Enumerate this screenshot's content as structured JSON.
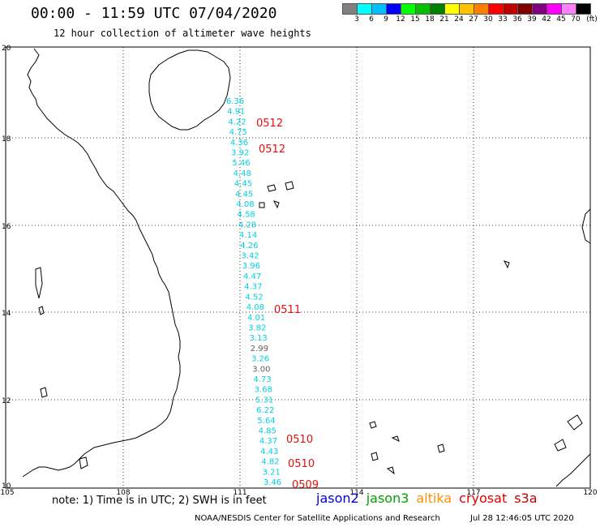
{
  "title": "00:00 - 11:59 UTC 07/04/2020",
  "subtitle": "12 hour collection of altimeter wave heights",
  "legend": {
    "colors": [
      "#808080",
      "#00ffff",
      "#00c0ff",
      "#0000ff",
      "#00ff00",
      "#00c000",
      "#008000",
      "#ffff00",
      "#ffc000",
      "#ff8000",
      "#ff0000",
      "#c00000",
      "#800000",
      "#800080",
      "#ff00ff",
      "#ff80ff",
      "#000000"
    ],
    "labels": [
      "3",
      "6",
      "9",
      "12",
      "15",
      "18",
      "21",
      "24",
      "27",
      "30",
      "33",
      "36",
      "39",
      "42",
      "45",
      "70"
    ],
    "unit": "(ft)"
  },
  "axes": {
    "lat_labels": [
      "20",
      "18",
      "16",
      "14",
      "12",
      "10"
    ],
    "lon_labels": [
      "105",
      "108",
      "111",
      "114",
      "117",
      "120"
    ]
  },
  "track": {
    "color": "#00d0e0",
    "gray_color": "#606060",
    "points": [
      {
        "value": "6.36",
        "c": "cyan"
      },
      {
        "value": "4.91",
        "c": "cyan"
      },
      {
        "value": "4.22",
        "c": "cyan"
      },
      {
        "value": "4.75",
        "c": "cyan"
      },
      {
        "value": "4.36",
        "c": "cyan"
      },
      {
        "value": "3.92",
        "c": "cyan"
      },
      {
        "value": "5.46",
        "c": "cyan"
      },
      {
        "value": "4.48",
        "c": "cyan"
      },
      {
        "value": "4.45",
        "c": "cyan"
      },
      {
        "value": "4.45",
        "c": "cyan"
      },
      {
        "value": "4.08",
        "c": "cyan"
      },
      {
        "value": "4.58",
        "c": "cyan"
      },
      {
        "value": "4.28",
        "c": "cyan"
      },
      {
        "value": "4.14",
        "c": "cyan"
      },
      {
        "value": "4.26",
        "c": "cyan"
      },
      {
        "value": "3.42",
        "c": "cyan"
      },
      {
        "value": "3.96",
        "c": "cyan"
      },
      {
        "value": "4.47",
        "c": "cyan"
      },
      {
        "value": "4.37",
        "c": "cyan"
      },
      {
        "value": "4.52",
        "c": "cyan"
      },
      {
        "value": "4.08",
        "c": "cyan"
      },
      {
        "value": "4.01",
        "c": "cyan"
      },
      {
        "value": "3.82",
        "c": "cyan"
      },
      {
        "value": "3.13",
        "c": "cyan"
      },
      {
        "value": "2.99",
        "c": "gray"
      },
      {
        "value": "3.26",
        "c": "cyan"
      },
      {
        "value": "3.00",
        "c": "gray"
      },
      {
        "value": "4.73",
        "c": "cyan"
      },
      {
        "value": "3.68",
        "c": "cyan"
      },
      {
        "value": "5.31",
        "c": "cyan"
      },
      {
        "value": "6.22",
        "c": "cyan"
      },
      {
        "value": "5.64",
        "c": "cyan"
      },
      {
        "value": "4.85",
        "c": "cyan"
      },
      {
        "value": "4.37",
        "c": "cyan"
      },
      {
        "value": "4.43",
        "c": "cyan"
      },
      {
        "value": "4.82",
        "c": "cyan"
      },
      {
        "value": "3.21",
        "c": "cyan"
      },
      {
        "value": "3.46",
        "c": "cyan"
      }
    ]
  },
  "pass_labels": [
    "0512",
    "0512",
    "0511",
    "0510",
    "0510",
    "0509"
  ],
  "note": "note: 1) Time is in UTC; 2) SWH is in feet",
  "satellites": [
    {
      "name": "jason2",
      "color": "#0000e0"
    },
    {
      "name": "jason3",
      "color": "#00a000"
    },
    {
      "name": "altika",
      "color": "#ff9000"
    },
    {
      "name": "cryosat",
      "color": "#e00000"
    },
    {
      "name": "s3a",
      "color": "#c00000"
    }
  ],
  "credit": "NOAA/NESDIS Center for Satellite Applications and Research",
  "timestamp": "Jul 28 12:46:05 UTC 2020"
}
